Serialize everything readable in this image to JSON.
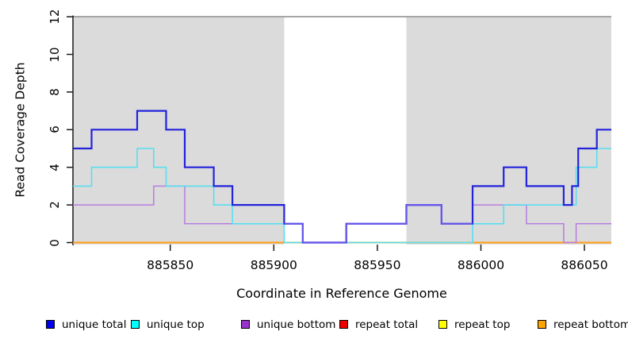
{
  "axes": {
    "ylabel": "Read Coverage Depth",
    "xlabel": "Coordinate in Reference Genome",
    "y_ticks": [
      "0",
      "2",
      "4",
      "6",
      "8",
      "10",
      "12"
    ],
    "x_ticks": [
      {
        "label": "885850",
        "coord": 885850
      },
      {
        "label": "885900",
        "coord": 885900
      },
      {
        "label": "885950",
        "coord": 885950
      },
      {
        "label": "886000",
        "coord": 886000
      },
      {
        "label": "886050",
        "coord": 886050
      }
    ]
  },
  "legend": [
    {
      "label": "unique total",
      "swatch": "#0000EE"
    },
    {
      "label": "unique top",
      "swatch": "#00FFFF"
    },
    {
      "label": "unique bottom",
      "swatch": "#9932CC"
    },
    {
      "label": "repeat total",
      "swatch": "#EE0000"
    },
    {
      "label": "repeat top",
      "swatch": "#FFFF00"
    },
    {
      "label": "repeat bottom",
      "swatch": "#FFA500"
    }
  ],
  "colors": {
    "shaded_region": "#DBDBDB",
    "top_border": "#9A9A9A",
    "axis": "#1A1A1A",
    "overlap_total_bottom": "#6858E8",
    "overlap_top_zero": "#8FD792"
  },
  "chart_data": {
    "type": "line",
    "subtype": "step-after-coverage",
    "title": "",
    "xlabel": "Coordinate in Reference Genome",
    "ylabel": "Read Coverage Depth",
    "x_range": [
      885803,
      886063
    ],
    "ylim": [
      0,
      12
    ],
    "grid": false,
    "legend_position": "bottom",
    "shaded_regions": [
      [
        885803,
        885905
      ],
      [
        885964,
        886063
      ]
    ],
    "series": [
      {
        "name": "unique total",
        "color": "#2323DC",
        "width": 2.2,
        "points": [
          [
            885803,
            5
          ],
          [
            885812,
            6
          ],
          [
            885834,
            7
          ],
          [
            885848,
            6
          ],
          [
            885857,
            4
          ],
          [
            885871,
            3
          ],
          [
            885880,
            2
          ],
          [
            885905,
            1
          ],
          [
            885914,
            0
          ],
          [
            885935,
            1
          ],
          [
            885964,
            2
          ],
          [
            885981,
            1
          ],
          [
            885996,
            3
          ],
          [
            886011,
            4
          ],
          [
            886022,
            3
          ],
          [
            886040,
            2
          ],
          [
            886044,
            3
          ],
          [
            886047,
            5
          ],
          [
            886056,
            6
          ]
        ],
        "end": 886063
      },
      {
        "name": "unique top",
        "color": "#58DEF0",
        "width": 1.6,
        "points": [
          [
            885803,
            3
          ],
          [
            885812,
            4
          ],
          [
            885834,
            5
          ],
          [
            885842,
            4
          ],
          [
            885848,
            3
          ],
          [
            885871,
            2
          ],
          [
            885880,
            1
          ],
          [
            885905,
            0
          ],
          [
            885996,
            1
          ],
          [
            886011,
            2
          ],
          [
            886046,
            4
          ],
          [
            886056,
            5
          ]
        ],
        "end": 886063
      },
      {
        "name": "unique bottom",
        "color": "#B87CDF",
        "width": 1.5,
        "points": [
          [
            885803,
            2
          ],
          [
            885842,
            3
          ],
          [
            885857,
            1
          ],
          [
            885914,
            0
          ],
          [
            885935,
            1
          ],
          [
            885964,
            2
          ],
          [
            885981,
            1
          ],
          [
            885996,
            2
          ],
          [
            886022,
            1
          ],
          [
            886040,
            0
          ],
          [
            886046,
            1
          ]
        ],
        "end": 886063
      },
      {
        "name": "repeat total",
        "color": "#DE2020",
        "width": 1.6,
        "points": [
          [
            885803,
            0
          ]
        ],
        "end": 886063
      },
      {
        "name": "repeat top",
        "color": "#F0F000",
        "width": 1.6,
        "points": [
          [
            885803,
            0
          ]
        ],
        "end": 886063
      },
      {
        "name": "repeat bottom",
        "color": "#FF9E14",
        "width": 2,
        "points": [
          [
            885803,
            0
          ]
        ],
        "end": 886063
      }
    ],
    "overlap_overlays": [
      {
        "name": "unique-top-at-zero-appears-green",
        "color": "#8FD792",
        "width": 1.6,
        "points": [
          [
            885905,
            0
          ]
        ],
        "end": 885996
      },
      {
        "name": "unique-total-equals-unique-bottom-appears-slate",
        "color": "#6858E8",
        "width": 2.2,
        "points": [
          [
            885905,
            1
          ],
          [
            885914,
            0
          ],
          [
            885935,
            1
          ],
          [
            885964,
            2
          ],
          [
            885981,
            1
          ]
        ],
        "end": 885996
      }
    ]
  }
}
